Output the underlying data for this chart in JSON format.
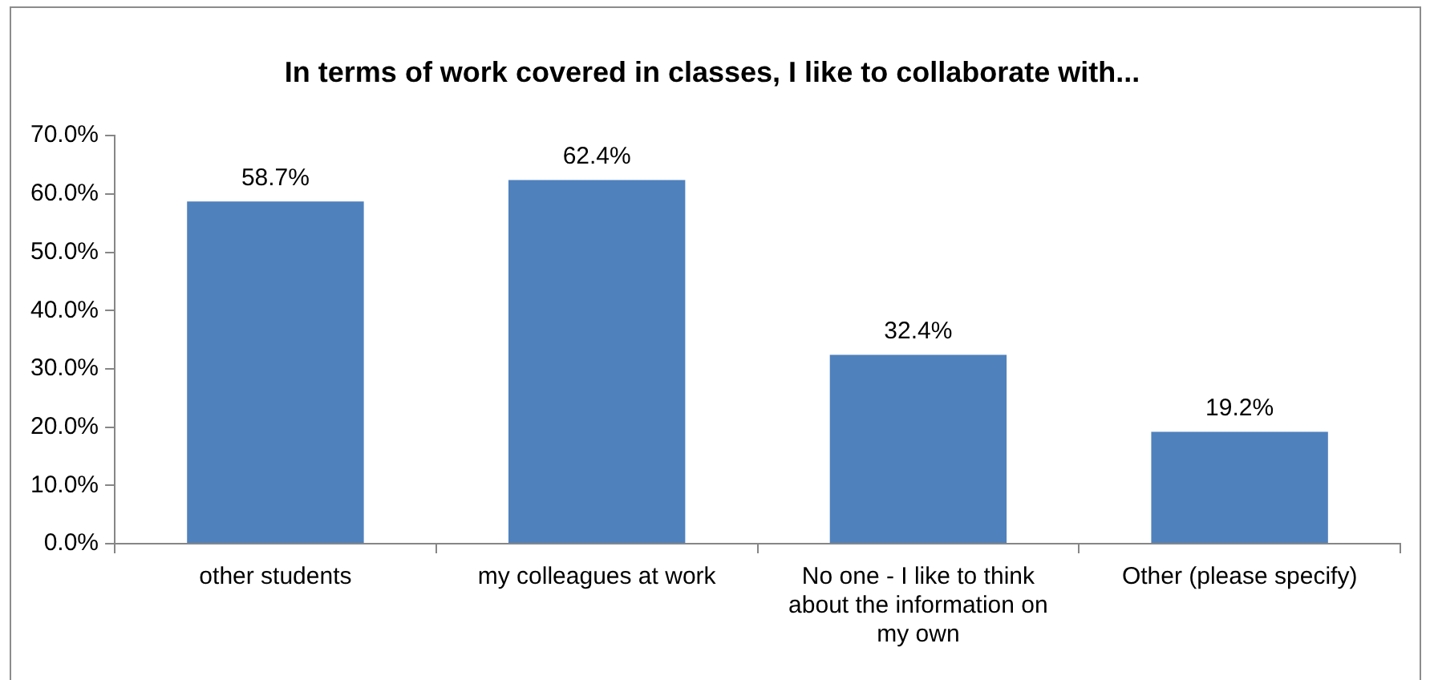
{
  "chart_data": {
    "type": "bar",
    "title": "In terms of work covered in classes, I like to collaborate with...",
    "categories": [
      "other students",
      "my colleagues at work",
      "No one - I like to think about the information on my own",
      "Other (please specify)"
    ],
    "values": [
      58.7,
      62.4,
      32.4,
      19.2
    ],
    "value_labels": [
      "58.7%",
      "62.4%",
      "32.4%",
      "19.2%"
    ],
    "color": "#4f81bd",
    "ylim": [
      0,
      70
    ],
    "yticks": [
      {
        "value": 0,
        "label": "0.0%"
      },
      {
        "value": 10,
        "label": "10.0%"
      },
      {
        "value": 20,
        "label": "20.0%"
      },
      {
        "value": 30,
        "label": "30.0%"
      },
      {
        "value": 40,
        "label": "40.0%"
      },
      {
        "value": 50,
        "label": "50.0%"
      },
      {
        "value": 60,
        "label": "60.0%"
      },
      {
        "value": 70,
        "label": "70.0%"
      }
    ],
    "grid": false,
    "legend": false
  }
}
